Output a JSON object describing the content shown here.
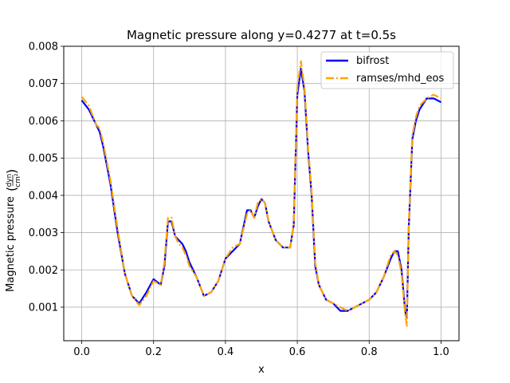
{
  "chart_data": {
    "type": "line",
    "title": "Magnetic pressure along y=0.4277 at t=0.5s",
    "xlabel": "x",
    "ylabel": "Magnetic pressure",
    "ylabel_unit_num": "dyn",
    "ylabel_unit_den": "cm²",
    "xlim": [
      -0.05,
      1.05
    ],
    "ylim": [
      0.0001,
      0.008
    ],
    "xticks": [
      0.0,
      0.2,
      0.4,
      0.6,
      0.8,
      1.0
    ],
    "xtick_labels": [
      "0.0",
      "0.2",
      "0.4",
      "0.6",
      "0.8",
      "1.0"
    ],
    "yticks": [
      0.001,
      0.002,
      0.003,
      0.004,
      0.005,
      0.006,
      0.007,
      0.008
    ],
    "ytick_labels": [
      "0.001",
      "0.002",
      "0.003",
      "0.004",
      "0.005",
      "0.006",
      "0.007",
      "0.008"
    ],
    "grid": true,
    "legend_position": "top-right",
    "series": [
      {
        "name": "bifrost",
        "color": "#0000ff",
        "style": "solid",
        "x": [
          0.0,
          0.02,
          0.04,
          0.05,
          0.06,
          0.08,
          0.1,
          0.12,
          0.14,
          0.16,
          0.18,
          0.2,
          0.22,
          0.23,
          0.24,
          0.25,
          0.26,
          0.27,
          0.28,
          0.29,
          0.3,
          0.32,
          0.34,
          0.36,
          0.38,
          0.4,
          0.42,
          0.44,
          0.46,
          0.47,
          0.48,
          0.49,
          0.5,
          0.51,
          0.52,
          0.54,
          0.56,
          0.58,
          0.59,
          0.6,
          0.61,
          0.62,
          0.63,
          0.64,
          0.65,
          0.66,
          0.68,
          0.7,
          0.72,
          0.74,
          0.76,
          0.78,
          0.8,
          0.82,
          0.84,
          0.86,
          0.87,
          0.88,
          0.89,
          0.9,
          0.905,
          0.91,
          0.92,
          0.93,
          0.94,
          0.96,
          0.98,
          1.0
        ],
        "y": [
          0.00655,
          0.0063,
          0.0059,
          0.0057,
          0.0053,
          0.0043,
          0.003,
          0.0019,
          0.0013,
          0.0011,
          0.0014,
          0.00175,
          0.0016,
          0.0021,
          0.0033,
          0.0033,
          0.0029,
          0.0028,
          0.0027,
          0.0025,
          0.0022,
          0.0018,
          0.0013,
          0.0014,
          0.0017,
          0.0023,
          0.0025,
          0.0027,
          0.0036,
          0.0036,
          0.0034,
          0.0037,
          0.0039,
          0.0038,
          0.0033,
          0.0028,
          0.0026,
          0.0026,
          0.0032,
          0.0067,
          0.0074,
          0.0068,
          0.0052,
          0.004,
          0.0021,
          0.0016,
          0.0012,
          0.0011,
          0.0009,
          0.0009,
          0.001,
          0.0011,
          0.0012,
          0.0014,
          0.0018,
          0.0023,
          0.0025,
          0.0025,
          0.002,
          0.0009,
          0.0007,
          0.0031,
          0.0055,
          0.006,
          0.0063,
          0.0066,
          0.0066,
          0.0065
        ]
      },
      {
        "name": "ramses/mhd_eos",
        "color": "#ffa500",
        "style": "dashdot",
        "x": [
          0.0,
          0.02,
          0.04,
          0.05,
          0.06,
          0.08,
          0.1,
          0.12,
          0.14,
          0.16,
          0.18,
          0.2,
          0.22,
          0.23,
          0.24,
          0.25,
          0.26,
          0.27,
          0.28,
          0.29,
          0.3,
          0.32,
          0.34,
          0.36,
          0.38,
          0.4,
          0.42,
          0.44,
          0.46,
          0.47,
          0.48,
          0.49,
          0.5,
          0.51,
          0.52,
          0.54,
          0.56,
          0.58,
          0.59,
          0.6,
          0.61,
          0.62,
          0.63,
          0.64,
          0.65,
          0.66,
          0.68,
          0.7,
          0.72,
          0.74,
          0.76,
          0.78,
          0.8,
          0.82,
          0.84,
          0.86,
          0.87,
          0.88,
          0.89,
          0.9,
          0.905,
          0.91,
          0.92,
          0.93,
          0.94,
          0.96,
          0.98,
          1.0
        ],
        "y": [
          0.00665,
          0.0064,
          0.0059,
          0.0058,
          0.0054,
          0.0044,
          0.0031,
          0.0019,
          0.0013,
          0.00105,
          0.0013,
          0.0017,
          0.0016,
          0.0022,
          0.0034,
          0.0034,
          0.0029,
          0.0027,
          0.0026,
          0.0024,
          0.0021,
          0.0018,
          0.0013,
          0.0014,
          0.0017,
          0.0023,
          0.0026,
          0.0027,
          0.0035,
          0.0036,
          0.0034,
          0.0038,
          0.0039,
          0.0038,
          0.0033,
          0.0028,
          0.0026,
          0.0026,
          0.0032,
          0.0069,
          0.0076,
          0.0069,
          0.0053,
          0.0041,
          0.0022,
          0.0016,
          0.0012,
          0.0011,
          0.001,
          0.0009,
          0.001,
          0.0011,
          0.0012,
          0.0014,
          0.0018,
          0.0024,
          0.0025,
          0.0024,
          0.0019,
          0.0008,
          0.0005,
          0.0032,
          0.0056,
          0.0061,
          0.0064,
          0.0066,
          0.0067,
          0.0066
        ]
      }
    ]
  }
}
